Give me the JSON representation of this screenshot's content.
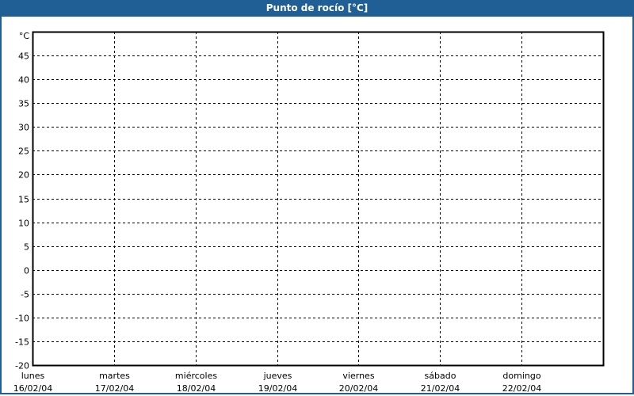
{
  "window": {
    "title": "Punto de rocío [°C]"
  },
  "chart_data": {
    "type": "line",
    "title": "Punto de rocío [°C]",
    "ylabel": "°C",
    "ylim": [
      -20,
      50
    ],
    "yticks": [
      45,
      40,
      35,
      30,
      25,
      20,
      15,
      10,
      5,
      0,
      -5,
      -10,
      -15,
      -20
    ],
    "x_categories": [
      {
        "day": "lunes",
        "date": "16/02/04"
      },
      {
        "day": "martes",
        "date": "17/02/04"
      },
      {
        "day": "miércoles",
        "date": "18/02/04"
      },
      {
        "day": "jueves",
        "date": "19/02/04"
      },
      {
        "day": "viernes",
        "date": "20/02/04"
      },
      {
        "day": "sábado",
        "date": "21/02/04"
      },
      {
        "day": "domingo",
        "date": "22/02/04"
      }
    ],
    "grid": true,
    "series": [],
    "colors": {
      "titlebar": "#1f5f96",
      "grid": "#000000"
    }
  }
}
